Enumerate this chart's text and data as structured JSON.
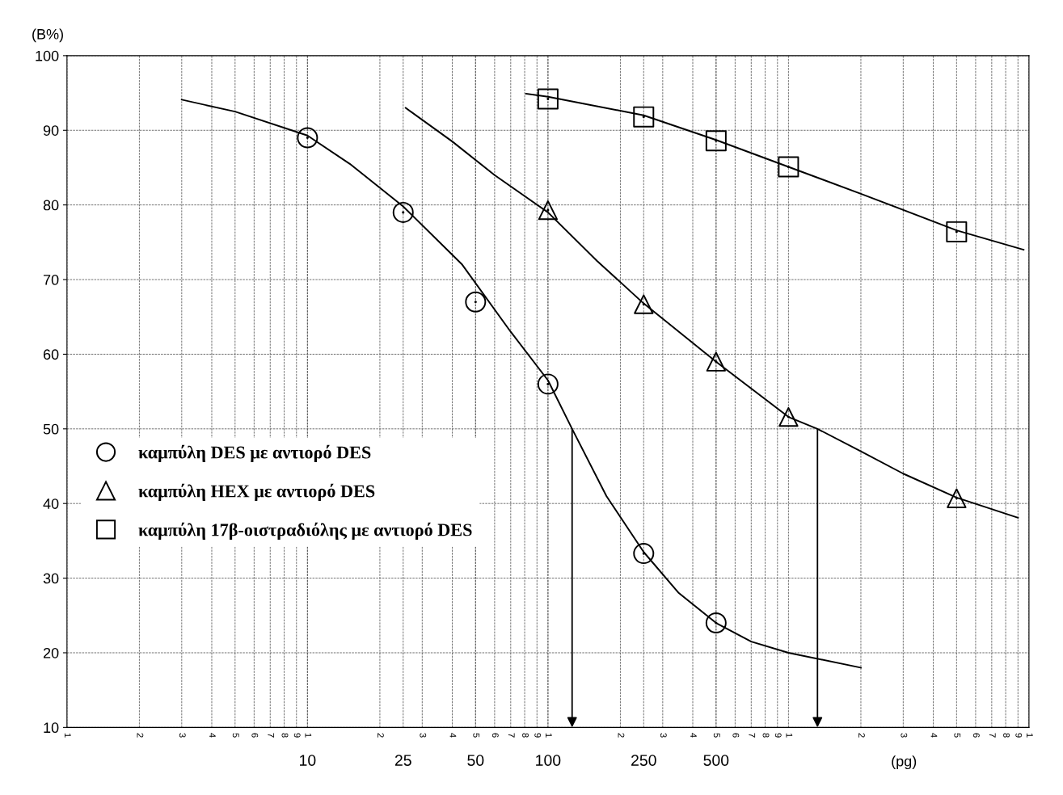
{
  "chart_data": {
    "type": "scatter",
    "ylabel": "(B%)",
    "xlabel": "(pg)",
    "log": "x",
    "xlim": [
      1,
      10000
    ],
    "ylim": [
      10,
      100
    ],
    "yticks": [
      10,
      20,
      30,
      40,
      50,
      60,
      70,
      80,
      90,
      100
    ],
    "xticks": [
      10,
      25,
      50,
      100,
      250,
      500
    ],
    "annotations": [
      "1",
      "2",
      "3",
      "4",
      "5",
      "6",
      "7",
      "8",
      "9",
      "1",
      "2",
      "3",
      "4",
      "5",
      "6",
      "7",
      "8",
      "9",
      "1",
      "2",
      "3",
      "4",
      "5",
      "6",
      "7",
      "8",
      "9",
      "1",
      "2",
      "3",
      "4",
      "5",
      "6",
      "7",
      "8",
      "9",
      "1"
    ],
    "grid": true,
    "legend": "left",
    "series": [
      {
        "name": "καμπύλη DES με αντιορό DES",
        "marker": "circle",
        "color": "#000000",
        "x": [
          10,
          25,
          50,
          100,
          250,
          500
        ],
        "values": [
          89,
          79,
          67,
          56,
          33.3,
          24
        ]
      },
      {
        "name": "καμπύλη HEX με αντιορό DES",
        "marker": "triangle",
        "color": "#000000",
        "x": [
          100,
          250,
          500,
          1000,
          5000
        ],
        "values": [
          79.3,
          66.7,
          59,
          51.6,
          40.7
        ]
      },
      {
        "name": "καμπύλη 17β-οιστραδιόλης με αντιορό DES",
        "marker": "square",
        "color": "#000000",
        "x": [
          100,
          250,
          500,
          1000,
          5000
        ],
        "values": [
          94.2,
          91.8,
          88.6,
          85.1,
          76.4
        ]
      },
      {
        "type": "line",
        "color": "#000000",
        "x": [
          3,
          5,
          10,
          15,
          25,
          44,
          70,
          100,
          126,
          175,
          250,
          350,
          500,
          700,
          1000,
          2000
        ],
        "values": [
          94.1,
          92.5,
          89.3,
          85.5,
          79.8,
          72,
          63,
          56.5,
          50,
          41,
          33.5,
          28,
          24,
          21.5,
          20,
          18
        ]
      },
      {
        "type": "line",
        "color": "#000000",
        "x": [
          25.6,
          40,
          60,
          100,
          160,
          250,
          500,
          1000,
          1320,
          2000,
          3000,
          5000,
          9000
        ],
        "values": [
          93,
          88.5,
          84,
          79,
          72.5,
          66.8,
          59,
          51.6,
          50,
          47,
          44,
          40.8,
          38.1
        ]
      },
      {
        "type": "line",
        "color": "#000000",
        "x": [
          81,
          100,
          250,
          500,
          2000,
          5000,
          9500
        ],
        "values": [
          94.9,
          94.5,
          92,
          88.7,
          81.5,
          76.6,
          74
        ]
      },
      {
        "type": "line",
        "color": "#000000",
        "x": [
          126,
          126
        ],
        "values": [
          50,
          10
        ]
      },
      {
        "type": "line",
        "color": "#000000",
        "x": [
          1320,
          1320
        ],
        "values": [
          50,
          10
        ]
      }
    ]
  }
}
